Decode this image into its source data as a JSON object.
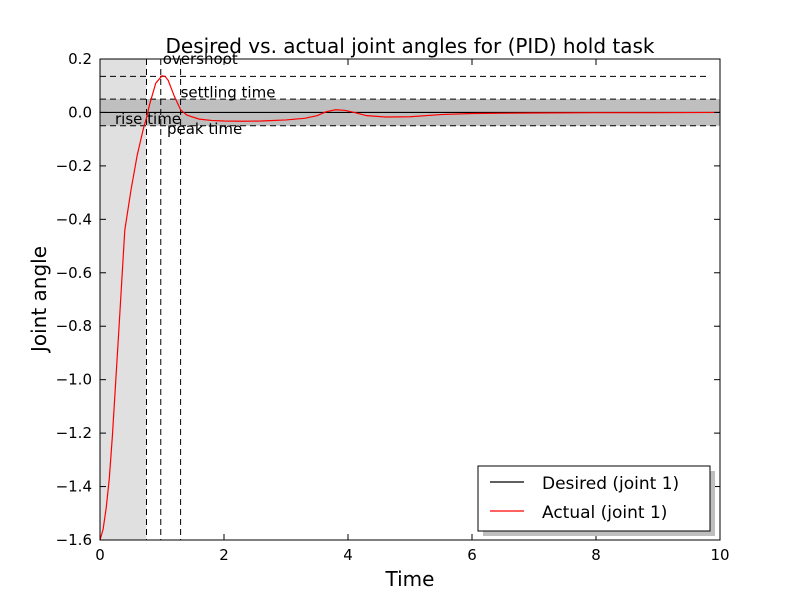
{
  "chart_data": {
    "type": "line",
    "title": "Desired vs. actual joint angles for (PID) hold task",
    "xlabel": "Time",
    "ylabel": "Joint angle",
    "xlim": [
      0,
      10
    ],
    "ylim": [
      -1.6,
      0.2
    ],
    "grid": false,
    "xticks": [
      0,
      2,
      4,
      6,
      8,
      10
    ],
    "xtick_labels": [
      "0",
      "2",
      "4",
      "6",
      "8",
      "10"
    ],
    "yticks": [
      0.2,
      0.0,
      -0.2,
      -0.4,
      -0.6,
      -0.8,
      -1.0,
      -1.2,
      -1.4,
      -1.6
    ],
    "ytick_labels": [
      "0.2",
      "0.0",
      "−0.2",
      "−0.4",
      "−0.6",
      "−0.8",
      "−1.0",
      "−1.2",
      "−1.4",
      "−1.6"
    ],
    "legend_position": "lower-right",
    "series": [
      {
        "name": "Desired (joint 1)",
        "color": "#000000",
        "x": [
          0,
          10
        ],
        "y": [
          0,
          0
        ]
      },
      {
        "name": "Actual (joint 1)",
        "color": "#ff0000",
        "x": [
          0,
          0.05,
          0.1,
          0.15,
          0.2,
          0.3,
          0.4,
          0.5,
          0.6,
          0.7,
          0.75,
          0.8,
          0.9,
          1.0,
          1.05,
          1.1,
          1.2,
          1.3,
          1.4,
          1.6,
          1.8,
          2.0,
          2.3,
          2.6,
          3.0,
          3.3,
          3.5,
          3.65,
          3.8,
          3.95,
          4.1,
          4.3,
          4.6,
          5.0,
          5.5,
          6.0,
          7.0,
          8.0,
          9.0,
          10.0
        ],
        "y": [
          -1.6,
          -1.56,
          -1.48,
          -1.37,
          -1.21,
          -0.83,
          -0.44,
          -0.29,
          -0.16,
          -0.06,
          -0.02,
          0.03,
          0.11,
          0.137,
          0.135,
          0.12,
          0.06,
          0.01,
          -0.01,
          -0.025,
          -0.03,
          -0.032,
          -0.033,
          -0.032,
          -0.028,
          -0.022,
          -0.012,
          0.003,
          0.01,
          0.008,
          0.0,
          -0.012,
          -0.017,
          -0.016,
          -0.008,
          -0.004,
          -0.002,
          -0.001,
          -0.001,
          0.0
        ]
      }
    ],
    "tolerance_band": {
      "y_low": -0.05,
      "y_high": 0.05,
      "color": "#bfbfbf"
    },
    "rise_shade": {
      "x_start": 0,
      "x_end": 0.75,
      "color": "#e0e0e0"
    },
    "overshoot_level": 0.135,
    "annotations": [
      {
        "label": "overshoot",
        "x_marker": 0.98
      },
      {
        "label": "settling time",
        "x_marker": 1.3
      },
      {
        "label": "rise time",
        "x_marker": 0.75
      },
      {
        "label": "peak time",
        "x_marker": 0.98
      }
    ]
  }
}
